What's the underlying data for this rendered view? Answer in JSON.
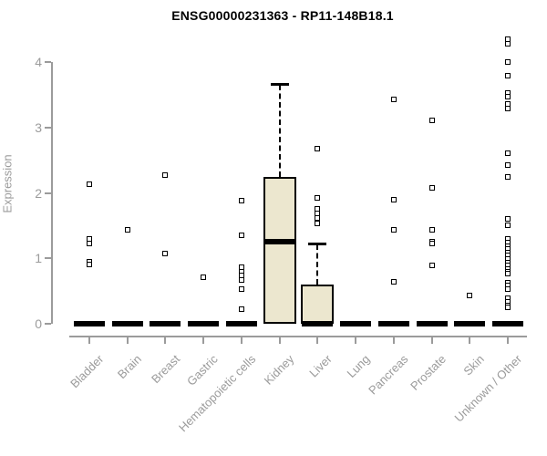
{
  "page": {
    "window_title": "ENSG00000231363 - RP11-148B18.1"
  },
  "chart_data": {
    "type": "boxplot",
    "title": "ENSG00000231363 - RP11-148B18.1",
    "ylabel": "Expression",
    "xlabel": "",
    "ylim": [
      0,
      4.4
    ],
    "yticks": [
      0,
      1,
      2,
      3,
      4
    ],
    "grid": false,
    "legend": "none",
    "colors": {
      "box_fill": "#ece7cf",
      "box_border": "#000000",
      "median": "#000000",
      "axis": "#9b9b9b",
      "tick_label": "#9b9b9b",
      "title": "#000000"
    },
    "categories": [
      "Bladder",
      "Brain",
      "Breast",
      "Gastric",
      "Hematopoietic cells",
      "Kidney",
      "Liver",
      "Lung",
      "Pancreas",
      "Prostate",
      "Skin",
      "Unknown / Other"
    ],
    "series": [
      {
        "category": "Bladder",
        "q1": 0,
        "median": 0,
        "q3": 0,
        "whisker_low": 0,
        "whisker_high": 0,
        "outliers": [
          2.13,
          1.3,
          1.23,
          0.95,
          0.9
        ]
      },
      {
        "category": "Brain",
        "q1": 0,
        "median": 0,
        "q3": 0,
        "whisker_low": 0,
        "whisker_high": 0,
        "outliers": [
          1.44
        ]
      },
      {
        "category": "Breast",
        "q1": 0,
        "median": 0,
        "q3": 0,
        "whisker_low": 0,
        "whisker_high": 0,
        "outliers": [
          2.27,
          1.07
        ]
      },
      {
        "category": "Gastric",
        "q1": 0,
        "median": 0,
        "q3": 0,
        "whisker_low": 0,
        "whisker_high": 0,
        "outliers": [
          0.71
        ]
      },
      {
        "category": "Hematopoietic cells",
        "q1": 0,
        "median": 0,
        "q3": 0,
        "whisker_low": 0,
        "whisker_high": 0,
        "outliers": [
          1.88,
          1.35,
          0.86,
          0.8,
          0.74,
          0.67,
          0.53,
          0.22
        ]
      },
      {
        "category": "Kidney",
        "q1": 0,
        "median": 1.25,
        "q3": 2.25,
        "whisker_low": 0,
        "whisker_high": 3.65,
        "outliers": []
      },
      {
        "category": "Liver",
        "q1": 0,
        "median": 0,
        "q3": 0.6,
        "whisker_low": 0,
        "whisker_high": 1.21,
        "outliers": [
          2.67,
          1.92,
          1.75,
          1.68,
          1.61,
          1.53
        ]
      },
      {
        "category": "Lung",
        "q1": 0,
        "median": 0,
        "q3": 0,
        "whisker_low": 0,
        "whisker_high": 0,
        "outliers": []
      },
      {
        "category": "Pancreas",
        "q1": 0,
        "median": 0,
        "q3": 0,
        "whisker_low": 0,
        "whisker_high": 0,
        "outliers": [
          3.43,
          1.89,
          1.44,
          0.64
        ]
      },
      {
        "category": "Prostate",
        "q1": 0,
        "median": 0,
        "q3": 0,
        "whisker_low": 0,
        "whisker_high": 0,
        "outliers": [
          3.11,
          2.07,
          1.44,
          1.26,
          1.22,
          0.89
        ]
      },
      {
        "category": "Skin",
        "q1": 0,
        "median": 0,
        "q3": 0,
        "whisker_low": 0,
        "whisker_high": 0,
        "outliers": [
          0.43
        ]
      },
      {
        "category": "Unknown / Other",
        "q1": 0,
        "median": 0,
        "q3": 0,
        "whisker_low": 0,
        "whisker_high": 0,
        "outliers": [
          4.35,
          4.28,
          4.0,
          3.79,
          3.52,
          3.47,
          3.36,
          3.29,
          2.61,
          2.43,
          2.24,
          1.6,
          1.51,
          1.29,
          1.24,
          1.19,
          1.14,
          1.09,
          1.04,
          0.99,
          0.94,
          0.89,
          0.84,
          0.8,
          0.76,
          0.63,
          0.58,
          0.53,
          0.39,
          0.33,
          0.28,
          0.25
        ]
      }
    ]
  }
}
